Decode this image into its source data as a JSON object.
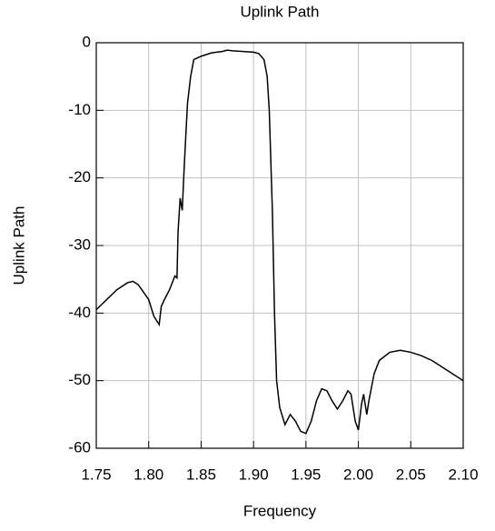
{
  "chart_data": {
    "type": "line",
    "title": "Uplink Path",
    "x_label": "Frequency",
    "y_label": "Uplink Path",
    "grid": true,
    "xlim": [
      1.75,
      2.1
    ],
    "ylim": [
      -60,
      0
    ],
    "xticks": [
      1.75,
      {
        "value": 1.8,
        "label": "1.80"
      },
      1.85,
      {
        "value": 1.9,
        "label": "1.90"
      },
      1.95,
      {
        "value": 2.0,
        "label": "2.00"
      },
      2.05,
      {
        "value": 2.1,
        "label": "2.10"
      }
    ],
    "yticks": [
      0,
      -10,
      -20,
      -30,
      -40,
      -50,
      -60
    ],
    "x": [
      1.75,
      1.76,
      1.77,
      1.78,
      1.785,
      1.79,
      1.8,
      1.805,
      1.81,
      1.812,
      1.815,
      1.82,
      1.825,
      1.827,
      1.828,
      1.83,
      1.832,
      1.834,
      1.837,
      1.84,
      1.843,
      1.85,
      1.86,
      1.87,
      1.875,
      1.88,
      1.89,
      1.9,
      1.905,
      1.91,
      1.913,
      1.915,
      1.918,
      1.92,
      1.922,
      1.925,
      1.93,
      1.935,
      1.94,
      1.945,
      1.95,
      1.955,
      1.96,
      1.965,
      1.97,
      1.975,
      1.98,
      1.985,
      1.99,
      1.993,
      1.997,
      2.0,
      2.003,
      2.005,
      2.008,
      2.01,
      2.015,
      2.02,
      2.03,
      2.04,
      2.05,
      2.06,
      2.07,
      2.08,
      2.09,
      2.1
    ],
    "series": [
      {
        "color": "#000000",
        "values": [
          -39.5,
          -38,
          -36.5,
          -35.5,
          -35.3,
          -35.8,
          -38,
          -40.5,
          -41.7,
          -39,
          -38,
          -36.5,
          -34.5,
          -34.8,
          -28,
          -23,
          -24.8,
          -18,
          -9,
          -5,
          -2.5,
          -2,
          -1.5,
          -1.3,
          -1.1,
          -1.2,
          -1.3,
          -1.4,
          -1.6,
          -2.5,
          -5,
          -10,
          -25,
          -40,
          -50,
          -54,
          -56.5,
          -55,
          -56,
          -57.5,
          -57.8,
          -56,
          -53,
          -51.2,
          -51.5,
          -53,
          -54.2,
          -53,
          -51.5,
          -52,
          -56,
          -57.3,
          -53.5,
          -52,
          -55,
          -53,
          -49,
          -47,
          -45.8,
          -45.5,
          -45.8,
          -46.3,
          -47,
          -48,
          -49,
          -50
        ]
      }
    ]
  }
}
